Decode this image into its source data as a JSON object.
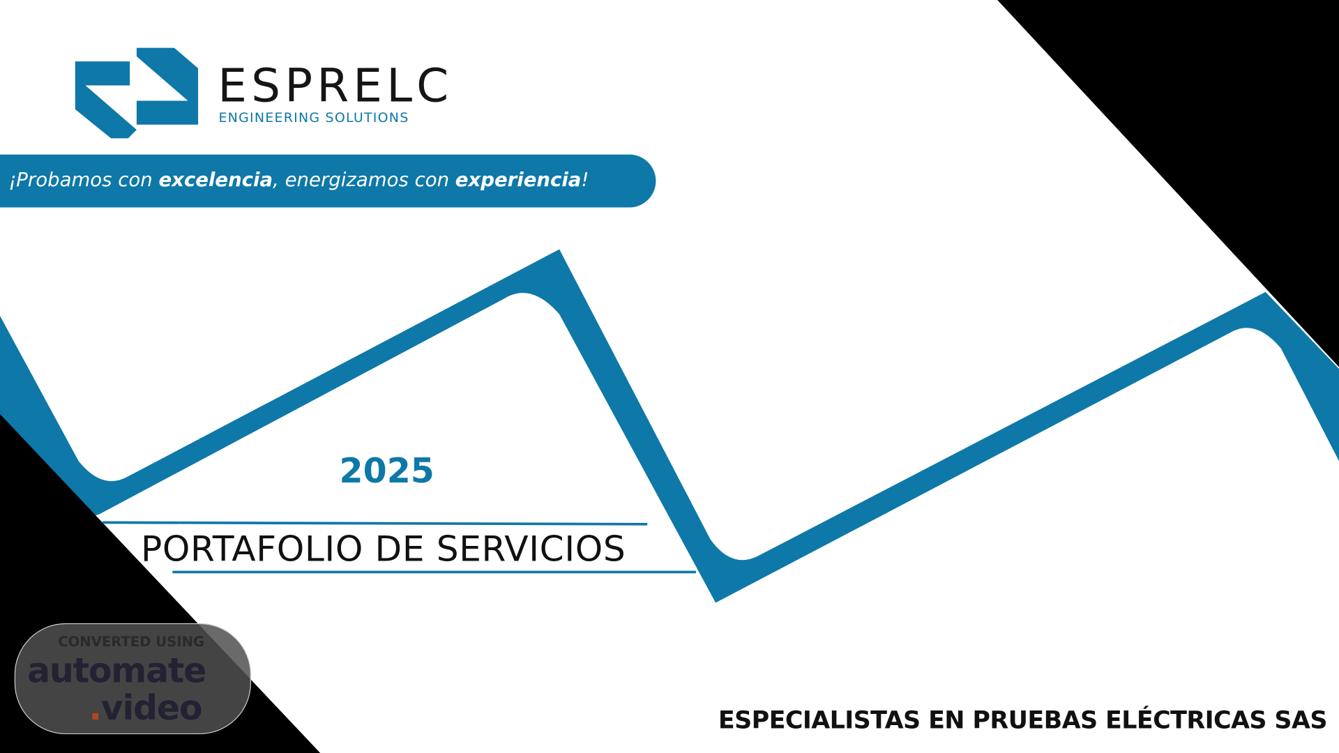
{
  "brand": {
    "name": "ESPRELC",
    "subtitle": "ENGINEERING SOLUTIONS"
  },
  "tagline": {
    "p1": "¡Probamos con ",
    "b1": "excelencia",
    "p2": ", energizamos con ",
    "b2": "experiencia",
    "p3": "!"
  },
  "year": "2025",
  "title": "PORTAFOLIO DE SERVICIOS",
  "company": "ESPECIALISTAS EN PRUEBAS ELÉCTRICAS SAS",
  "watermark": {
    "line1": "CONVERTED USING",
    "line2": "automate",
    "dot": ".",
    "line3": "video"
  },
  "colors": {
    "accent": "#0e78a8",
    "dark": "#000000"
  }
}
